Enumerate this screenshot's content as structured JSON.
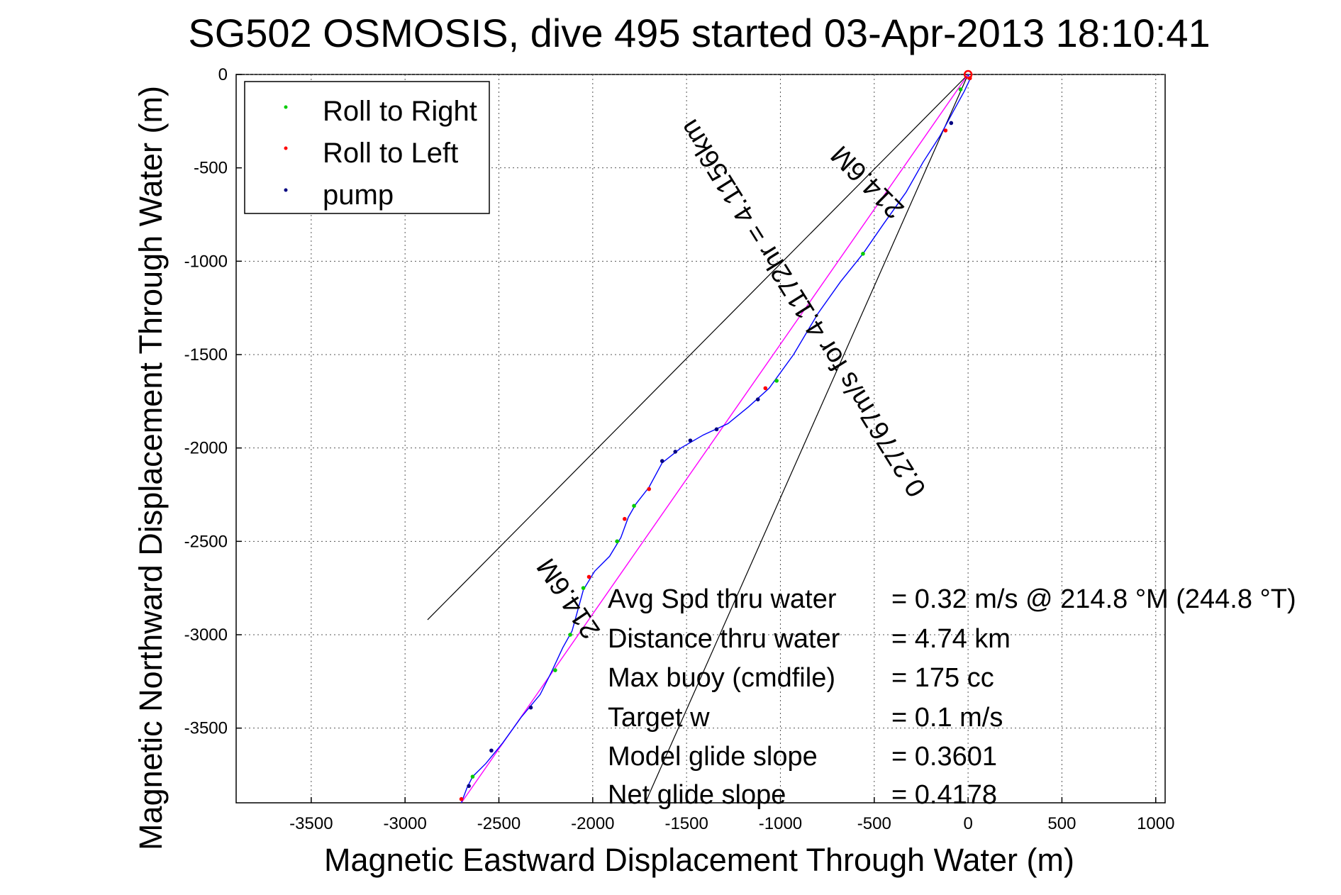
{
  "chart_data": {
    "type": "scatter",
    "title": "SG502 OSMOSIS, dive 495 started 03-Apr-2013 18:10:41",
    "xlabel": "Magnetic Eastward Displacement Through Water (m)",
    "ylabel": "Magnetic Northward Displacement Through Water (m)",
    "xlim": [
      -3900,
      1050
    ],
    "ylim": [
      -3900,
      0
    ],
    "xticks": [
      "-3500",
      "-3000",
      "-2500",
      "-2000",
      "-1500",
      "-1000",
      "-500",
      "0",
      "500",
      "1000"
    ],
    "xtick_values": [
      -3500,
      -3000,
      -2500,
      -2000,
      -1500,
      -1000,
      -500,
      0,
      500,
      1000
    ],
    "yticks": [
      "0",
      "-500",
      "-1000",
      "-1500",
      "-2000",
      "-2500",
      "-3000",
      "-3500"
    ],
    "ytick_values": [
      0,
      -500,
      -1000,
      -1500,
      -2000,
      -2500,
      -3000,
      -3500
    ],
    "grid": true,
    "legend_position": "top-left",
    "legend": [
      {
        "label": "Roll to Right",
        "color": "#00cc00"
      },
      {
        "label": "Roll to Left",
        "color": "#ff0000"
      },
      {
        "label": "pump",
        "color": "#000080"
      }
    ],
    "track_color": "#0000ff",
    "heading_color": "#ff00ff",
    "cone_color": "#000000",
    "track": [
      [
        0,
        0
      ],
      [
        10,
        -25
      ],
      [
        -20,
        -90
      ],
      [
        -80,
        -200
      ],
      [
        -150,
        -330
      ],
      [
        -240,
        -470
      ],
      [
        -330,
        -630
      ],
      [
        -450,
        -800
      ],
      [
        -560,
        -960
      ],
      [
        -680,
        -1110
      ],
      [
        -800,
        -1280
      ],
      [
        -930,
        -1500
      ],
      [
        -1060,
        -1680
      ],
      [
        -1170,
        -1780
      ],
      [
        -1280,
        -1870
      ],
      [
        -1410,
        -1930
      ],
      [
        -1530,
        -2000
      ],
      [
        -1630,
        -2080
      ],
      [
        -1700,
        -2210
      ],
      [
        -1770,
        -2300
      ],
      [
        -1810,
        -2370
      ],
      [
        -1850,
        -2480
      ],
      [
        -1910,
        -2580
      ],
      [
        -1990,
        -2660
      ],
      [
        -2050,
        -2760
      ],
      [
        -2110,
        -2980
      ],
      [
        -2160,
        -3070
      ],
      [
        -2220,
        -3200
      ],
      [
        -2280,
        -3320
      ],
      [
        -2380,
        -3440
      ],
      [
        -2480,
        -3580
      ],
      [
        -2570,
        -3690
      ],
      [
        -2640,
        -3760
      ],
      [
        -2670,
        -3820
      ],
      [
        -2700,
        -3900
      ]
    ],
    "heading_line": [
      [
        0,
        0
      ],
      [
        -2700,
        -3900
      ]
    ],
    "cone_lines": [
      [
        [
          0,
          0
        ],
        [
          -2880,
          -2920
        ]
      ],
      [
        [
          0,
          0
        ],
        [
          -1720,
          -3900
        ]
      ]
    ],
    "points": {
      "roll_right": [
        [
          -40,
          -80
        ],
        [
          -560,
          -960
        ],
        [
          -1020,
          -1640
        ],
        [
          -1870,
          -2500
        ],
        [
          -2200,
          -3190
        ],
        [
          -2120,
          -3000
        ],
        [
          -2640,
          -3760
        ],
        [
          -2050,
          -2750
        ],
        [
          -1780,
          -2310
        ]
      ],
      "roll_left": [
        [
          10,
          -20
        ],
        [
          -120,
          -300
        ],
        [
          -1080,
          -1680
        ],
        [
          -1830,
          -2380
        ],
        [
          -2020,
          -2690
        ],
        [
          -2700,
          -3880
        ],
        [
          -1700,
          -2220
        ]
      ],
      "pump": [
        [
          -90,
          -260
        ],
        [
          -1120,
          -1740
        ],
        [
          -1340,
          -1900
        ],
        [
          -1480,
          -1960
        ],
        [
          -1560,
          -2020
        ],
        [
          -1630,
          -2070
        ],
        [
          -2330,
          -3390
        ],
        [
          -2540,
          -3620
        ],
        [
          -2660,
          -3810
        ]
      ]
    },
    "annotations": [
      "214.6M",
      "0.27767m/s for 4.1172hr = 4.1156km",
      "214.6M"
    ],
    "stats": [
      {
        "label": "Avg Spd thru water",
        "value": "=  0.32 m/s @ 214.8  °M (244.8  °T)"
      },
      {
        "label": "Distance thru water",
        "value": "=  4.74 km"
      },
      {
        "label": "Max buoy (cmdfile)",
        "value": "= 175 cc"
      },
      {
        "label": "Target w",
        "value": "= 0.1 m/s"
      },
      {
        "label": "Model glide slope",
        "value": "= 0.3601"
      },
      {
        "label": "Net glide slope",
        "value": "= 0.4178"
      }
    ]
  }
}
